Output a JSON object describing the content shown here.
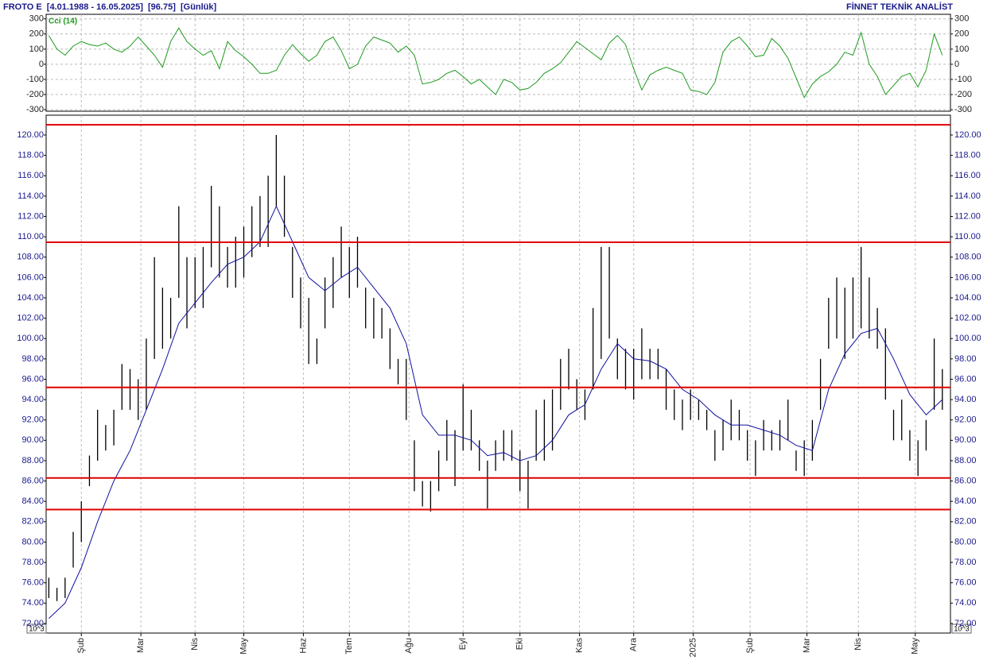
{
  "header": {
    "left": "FROTO E  [4.01.1988 - 16.05.2025]  [96.75]  [Günlük]",
    "right": "FİNNET TEKNİK ANALİST",
    "unit": "10^3"
  },
  "chart_data": [
    {
      "type": "line",
      "title": "Cci (14)",
      "color": "#1f9a1f",
      "x": [
        0,
        3,
        6,
        9,
        12,
        15,
        18,
        21,
        24,
        27,
        30,
        33,
        36,
        39,
        42,
        45,
        48,
        51,
        54,
        57,
        60,
        63,
        66,
        69,
        72,
        75,
        78,
        81,
        84,
        87,
        90,
        93,
        96,
        99,
        102,
        105,
        108,
        111,
        114,
        117,
        120,
        123,
        126,
        129,
        132,
        135,
        138,
        141,
        144,
        147,
        150,
        153,
        156,
        159,
        162,
        165,
        168,
        171,
        174,
        177,
        180,
        183,
        186,
        189,
        192,
        195,
        198,
        201,
        204,
        207,
        210,
        213,
        216,
        219,
        222,
        225,
        228,
        231,
        234,
        237,
        240,
        243,
        246,
        249,
        252,
        255,
        258,
        261,
        264,
        267,
        270,
        273,
        276,
        279,
        282,
        285,
        288,
        291,
        294,
        297,
        300,
        303,
        306,
        309,
        312,
        315,
        318,
        321,
        324,
        327,
        330
      ],
      "values": [
        190,
        100,
        60,
        120,
        150,
        130,
        120,
        140,
        100,
        80,
        120,
        180,
        120,
        60,
        -20,
        150,
        240,
        150,
        100,
        60,
        90,
        -30,
        150,
        90,
        50,
        0,
        -60,
        -60,
        -40,
        60,
        130,
        70,
        20,
        60,
        150,
        180,
        90,
        -30,
        0,
        120,
        180,
        160,
        140,
        80,
        120,
        60,
        -130,
        -120,
        -100,
        -60,
        -40,
        -80,
        -130,
        -100,
        -150,
        -200,
        -100,
        -120,
        -170,
        -160,
        -120,
        -60,
        -30,
        10,
        80,
        150,
        110,
        70,
        30,
        140,
        190,
        130,
        -30,
        -170,
        -70,
        -40,
        -20,
        -40,
        -60,
        -170,
        -180,
        -200,
        -120,
        80,
        150,
        180,
        120,
        50,
        60,
        170,
        120,
        40,
        -90,
        -220,
        -130,
        -80,
        -50,
        0,
        80,
        60,
        210,
        0,
        -80,
        -200,
        -140,
        -80,
        -60,
        -150,
        -40,
        200,
        60
      ],
      "xlim": [
        -1,
        333
      ],
      "ylim": [
        -310,
        330
      ],
      "yticks": [
        -300,
        -200,
        -100,
        0,
        100,
        200,
        300
      ],
      "grid": true
    },
    {
      "type": "hilo",
      "bar_color": "#000000",
      "x": [
        0,
        3,
        6,
        9,
        12,
        15,
        18,
        21,
        24,
        27,
        30,
        33,
        36,
        39,
        42,
        45,
        48,
        51,
        54,
        57,
        60,
        63,
        66,
        69,
        72,
        75,
        78,
        81,
        84,
        87,
        90,
        93,
        96,
        99,
        102,
        105,
        108,
        111,
        114,
        117,
        120,
        123,
        126,
        129,
        132,
        135,
        138,
        141,
        144,
        147,
        150,
        153,
        156,
        159,
        162,
        165,
        168,
        171,
        174,
        177,
        180,
        183,
        186,
        189,
        192,
        195,
        198,
        201,
        204,
        207,
        210,
        213,
        216,
        219,
        222,
        225,
        228,
        231,
        234,
        237,
        240,
        243,
        246,
        249,
        252,
        255,
        258,
        261,
        264,
        267,
        270,
        273,
        276,
        279,
        282,
        285,
        288,
        291,
        294,
        297,
        300,
        303,
        306,
        309,
        312,
        315,
        318,
        321,
        324,
        327,
        330
      ],
      "high": [
        76.5,
        75.5,
        76.5,
        81,
        84,
        88.5,
        93,
        91.5,
        93,
        97.5,
        97,
        96,
        100,
        108,
        105,
        104,
        113,
        108,
        108,
        109,
        115,
        113,
        109,
        110,
        111,
        113,
        114,
        116,
        120,
        116,
        109,
        106,
        104,
        100,
        106,
        108,
        111,
        109,
        110,
        105,
        104,
        103,
        101,
        98,
        98,
        90,
        86,
        86,
        89,
        92,
        91,
        95.5,
        93,
        90,
        88,
        90,
        91,
        91,
        89,
        88,
        93,
        94,
        95,
        98,
        99,
        96,
        95,
        103,
        109,
        109,
        100,
        99,
        99,
        101,
        99,
        99,
        97,
        95,
        94,
        95,
        94,
        93,
        91,
        92,
        94,
        93,
        91,
        90,
        92,
        91,
        92,
        94,
        89,
        90,
        92,
        98,
        104,
        106,
        105,
        106,
        109,
        106,
        103,
        101,
        93,
        94,
        91,
        90,
        92,
        100,
        97
      ],
      "low": [
        74.5,
        74.2,
        74.5,
        77.5,
        80,
        85.5,
        88,
        89,
        89.5,
        93,
        93,
        92,
        93,
        98,
        99,
        100,
        104,
        101,
        103,
        103,
        107,
        106,
        105,
        105,
        106,
        108,
        109,
        109,
        113,
        110,
        104,
        101,
        97.5,
        97.5,
        101,
        103,
        106,
        104,
        105,
        101,
        100,
        100,
        97,
        95.5,
        92,
        85,
        83.5,
        83,
        85,
        88,
        85.5,
        89,
        89,
        87,
        83.3,
        87,
        88,
        88,
        85,
        83.3,
        88,
        88,
        89,
        93,
        95,
        93,
        92,
        95,
        98,
        100,
        96,
        95,
        94,
        96,
        96,
        96,
        93,
        92,
        91,
        92,
        92,
        91,
        88,
        89,
        90,
        90,
        88,
        86.5,
        89,
        89,
        89,
        90,
        87,
        86.5,
        88,
        93,
        99,
        100,
        98,
        100,
        101,
        100,
        99,
        94,
        90,
        90,
        88,
        86.5,
        89,
        93,
        93
      ],
      "moving_average": {
        "color": "#1010a0",
        "x": [
          0,
          6,
          12,
          18,
          24,
          30,
          36,
          42,
          48,
          54,
          60,
          66,
          72,
          78,
          84,
          90,
          96,
          102,
          108,
          114,
          120,
          126,
          132,
          138,
          144,
          150,
          156,
          162,
          168,
          174,
          180,
          186,
          192,
          198,
          204,
          210,
          216,
          222,
          228,
          234,
          240,
          246,
          252,
          258,
          264,
          270,
          276,
          282,
          288,
          294,
          300,
          306,
          312,
          318,
          324,
          330
        ],
        "values": [
          72.5,
          74,
          77.5,
          82,
          86,
          89,
          93,
          97,
          101.5,
          103.5,
          105.5,
          107.3,
          108,
          109.5,
          113,
          109.5,
          106,
          104.7,
          106,
          107,
          105,
          103,
          99.5,
          92.5,
          90.5,
          90.5,
          90,
          88.5,
          88.8,
          88,
          88.5,
          90,
          92.5,
          93.5,
          97,
          99.5,
          98,
          97.8,
          97,
          95,
          94,
          92.5,
          91.5,
          91.5,
          91,
          90.5,
          89.5,
          89,
          95,
          98.5,
          100.5,
          101,
          98,
          94.5,
          92.5,
          94
        ]
      },
      "levels": {
        "color": "#e00000",
        "values": [
          121,
          109.46,
          95.2,
          86.3,
          83.2
        ]
      },
      "xlim": [
        -1,
        333
      ],
      "ylim": [
        71.06,
        121.95
      ],
      "yticks": [
        {
          "value": 72,
          "label": "72.00"
        },
        {
          "value": 74,
          "label": "74.00"
        },
        {
          "value": 76,
          "label": "76.00"
        },
        {
          "value": 78,
          "label": "78.00"
        },
        {
          "value": 80,
          "label": "80.00"
        },
        {
          "value": 82,
          "label": "82.00"
        },
        {
          "value": 84,
          "label": "84.00"
        },
        {
          "value": 86,
          "label": "86.00"
        },
        {
          "value": 88,
          "label": "88.00"
        },
        {
          "value": 90,
          "label": "90.00"
        },
        {
          "value": 92,
          "label": "92.00"
        },
        {
          "value": 94,
          "label": "94.00"
        },
        {
          "value": 96,
          "label": "96.00"
        },
        {
          "value": 98,
          "label": "98.00"
        },
        {
          "value": 100,
          "label": "100.00"
        },
        {
          "value": 102,
          "label": "102.00"
        },
        {
          "value": 104,
          "label": "104.00"
        },
        {
          "value": 106,
          "label": "106.00"
        },
        {
          "value": 108,
          "label": "108.00"
        },
        {
          "value": 110,
          "label": "110.00"
        },
        {
          "value": 112,
          "label": "112.00"
        },
        {
          "value": 114,
          "label": "114.00"
        },
        {
          "value": 116,
          "label": "116.00"
        },
        {
          "value": 118,
          "label": "118.00"
        },
        {
          "value": 120,
          "label": "120.00"
        }
      ],
      "xticks": [
        {
          "value": 12,
          "label": "Şub"
        },
        {
          "value": 34,
          "label": "Mar"
        },
        {
          "value": 54,
          "label": "Nis"
        },
        {
          "value": 72,
          "label": "May"
        },
        {
          "value": 94,
          "label": "Haz"
        },
        {
          "value": 111,
          "label": "Tem"
        },
        {
          "value": 133,
          "label": "Ağu"
        },
        {
          "value": 153,
          "label": "Eyl"
        },
        {
          "value": 174,
          "label": "Eki"
        },
        {
          "value": 196,
          "label": "Kas"
        },
        {
          "value": 216,
          "label": "Ara"
        },
        {
          "value": 238,
          "label": "2025"
        },
        {
          "value": 259,
          "label": "Şub"
        },
        {
          "value": 280,
          "label": "Mar"
        },
        {
          "value": 299,
          "label": "Nis"
        },
        {
          "value": 320,
          "label": "May"
        }
      ],
      "grid": true
    }
  ]
}
